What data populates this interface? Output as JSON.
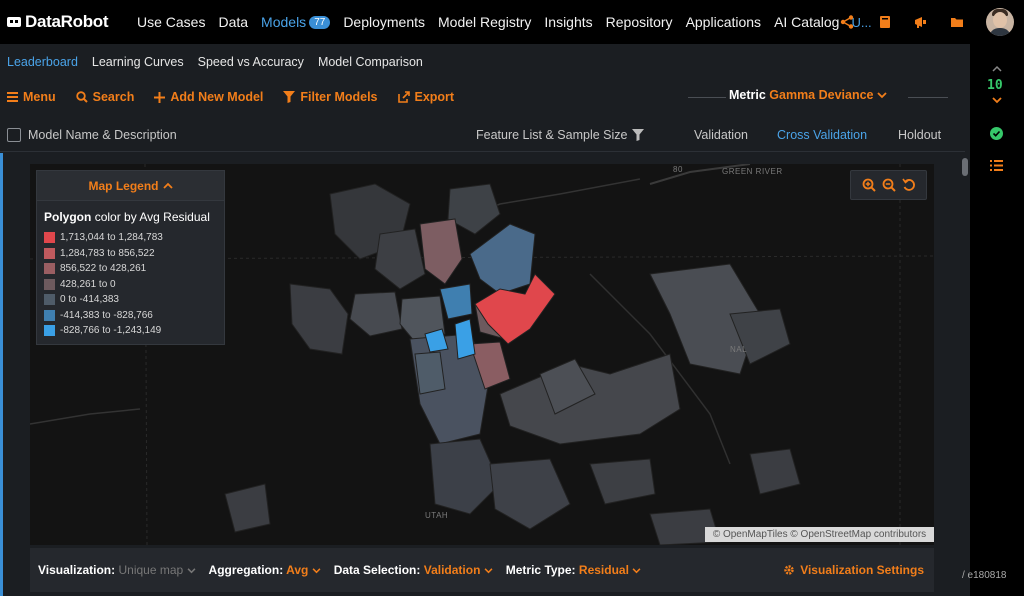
{
  "nav": {
    "brand": "DataRobot",
    "items": [
      {
        "label": "Use Cases",
        "active": false
      },
      {
        "label": "Data",
        "active": false
      },
      {
        "label": "Models",
        "active": true,
        "badge": "77"
      },
      {
        "label": "Deployments",
        "active": false
      },
      {
        "label": "Model Registry",
        "active": false
      },
      {
        "label": "Insights",
        "active": false
      },
      {
        "label": "Repository",
        "active": false
      },
      {
        "label": "Applications",
        "active": false
      },
      {
        "label": "AI Catalog",
        "active": false
      }
    ],
    "more": "U...",
    "icons": [
      "share-icon",
      "book-icon",
      "megaphone-icon",
      "folder-icon",
      "avatar"
    ]
  },
  "subtabs": [
    {
      "label": "Leaderboard",
      "active": true
    },
    {
      "label": "Learning Curves",
      "active": false
    },
    {
      "label": "Speed vs Accuracy",
      "active": false
    },
    {
      "label": "Model Comparison",
      "active": false
    }
  ],
  "toolbar": {
    "menu": "Menu",
    "search": "Search",
    "add_model": "Add New Model",
    "filter": "Filter Models",
    "export": "Export",
    "metric_label": "Metric",
    "metric_value": "Gamma Deviance"
  },
  "columns": {
    "name": "Model Name & Description",
    "feature": "Feature List & Sample Size",
    "validation": "Validation",
    "cross_validation": "Cross Validation",
    "holdout": "Holdout"
  },
  "legend": {
    "header": "Map Legend",
    "title_bold": "Polygon",
    "title_rest": "color by Avg Residual",
    "rows": [
      {
        "label": "1,713,044 to 1,284,783",
        "color": "#e0474c"
      },
      {
        "label": "1,284,783 to 856,522",
        "color": "#c05a5e"
      },
      {
        "label": "856,522 to 428,261",
        "color": "#9a5e62"
      },
      {
        "label": "428,261 to 0",
        "color": "#6d5a5e"
      },
      {
        "label": "0 to -414,383",
        "color": "#4f5c69"
      },
      {
        "label": "-414,383 to -828,766",
        "color": "#3f7fb0"
      },
      {
        "label": "-828,766 to -1,243,149",
        "color": "#3aa0e6"
      }
    ]
  },
  "map": {
    "labels": {
      "green_river": "GREEN RIVER",
      "utah": "UTAH",
      "nal": "NAL",
      "road80": "80"
    },
    "attribution": "© OpenMapTiles © OpenStreetMap contributors",
    "controls": [
      "zoom-in-icon",
      "zoom-out-icon",
      "reset-icon"
    ]
  },
  "bottom": {
    "visualization_label": "Visualization:",
    "visualization_value": "Unique map",
    "aggregation_label": "Aggregation:",
    "aggregation_value": "Avg",
    "data_selection_label": "Data Selection:",
    "data_selection_value": "Validation",
    "metric_type_label": "Metric Type:",
    "metric_type_value": "Residual",
    "settings": "Visualization Settings"
  },
  "rail": {
    "count": "10"
  },
  "hash": "/ e180818",
  "colors": {
    "accent": "#f27e1a",
    "link": "#4aa3e8",
    "success": "#36c86a"
  }
}
